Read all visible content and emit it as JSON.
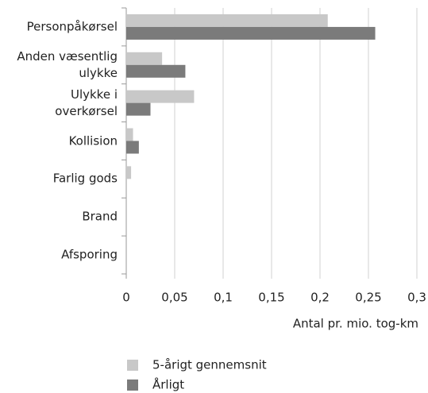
{
  "chart_data": {
    "type": "bar",
    "orientation": "horizontal",
    "categories": [
      "Personpåkørsel",
      "Anden væsentlig\nulykke",
      "Ulykke i\noverkørsel",
      "Kollision",
      "Farlig gods",
      "Brand",
      "Afsporing"
    ],
    "series": [
      {
        "name": "5-årigt gennemsnit",
        "color": "#c8c8c8",
        "values": [
          0.208,
          0.037,
          0.07,
          0.007,
          0.005,
          0,
          0
        ]
      },
      {
        "name": "Årligt",
        "color": "#7b7b7b",
        "values": [
          0.257,
          0.061,
          0.025,
          0.013,
          0,
          0,
          0
        ]
      }
    ],
    "xlabel": "Antal pr. mio. tog-km",
    "xlim": [
      0,
      0.3
    ],
    "xticks": [
      0,
      {
        "value": 0.05,
        "label": "0,05"
      },
      {
        "value": 0.1,
        "label": "0,1"
      },
      {
        "value": 0.15,
        "label": "0,15"
      },
      {
        "value": 0.2,
        "label": "0,2"
      },
      {
        "value": 0.25,
        "label": "0,25"
      },
      {
        "value": 0.3,
        "label": "0,3"
      }
    ],
    "grid": true
  }
}
